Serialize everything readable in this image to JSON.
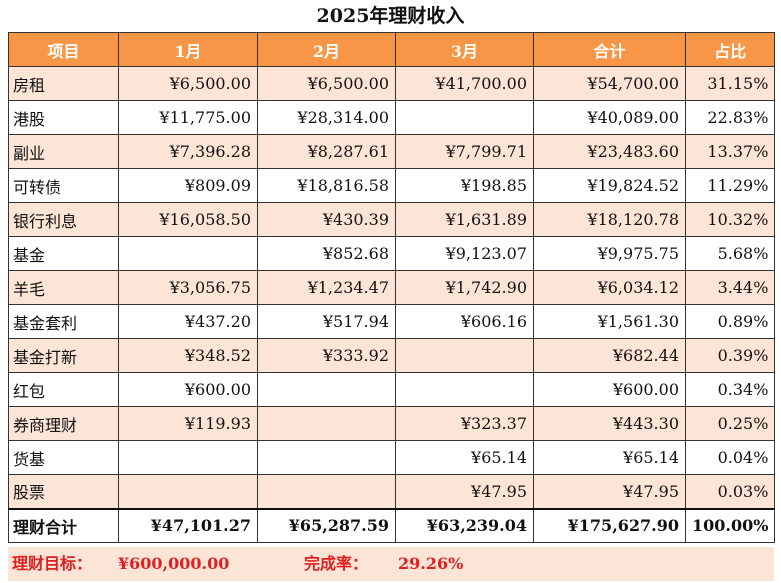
{
  "title": "2025年理财收入",
  "headers": [
    "项目",
    "1月",
    "2月",
    "3月",
    "合计",
    "占比"
  ],
  "rows": [
    [
      "房租",
      "¥6,500.00",
      "¥6,500.00",
      "¥41,700.00",
      "¥54,700.00",
      "31.15%"
    ],
    [
      "港股",
      "¥11,775.00",
      "¥28,314.00",
      "",
      "¥40,089.00",
      "22.83%"
    ],
    [
      "副业",
      "¥7,396.28",
      "¥8,287.61",
      "¥7,799.71",
      "¥23,483.60",
      "13.37%"
    ],
    [
      "可转债",
      "¥809.09",
      "¥18,816.58",
      "¥198.85",
      "¥19,824.52",
      "11.29%"
    ],
    [
      "银行利息",
      "¥16,058.50",
      "¥430.39",
      "¥1,631.89",
      "¥18,120.78",
      "10.32%"
    ],
    [
      "基金",
      "",
      "¥852.68",
      "¥9,123.07",
      "¥9,975.75",
      "5.68%"
    ],
    [
      "羊毛",
      "¥3,056.75",
      "¥1,234.47",
      "¥1,742.90",
      "¥6,034.12",
      "3.44%"
    ],
    [
      "基金套利",
      "¥437.20",
      "¥517.94",
      "¥606.16",
      "¥1,561.30",
      "0.89%"
    ],
    [
      "基金打新",
      "¥348.52",
      "¥333.92",
      "",
      "¥682.44",
      "0.39%"
    ],
    [
      "红包",
      "¥600.00",
      "",
      "",
      "¥600.00",
      "0.34%"
    ],
    [
      "券商理财",
      "¥119.93",
      "",
      "¥323.37",
      "¥443.30",
      "0.25%"
    ],
    [
      "货基",
      "",
      "",
      "¥65.14",
      "¥65.14",
      "0.04%"
    ],
    [
      "股票",
      "",
      "",
      "¥47.95",
      "¥47.95",
      "0.03%"
    ]
  ],
  "total": [
    "理财合计",
    "¥47,101.27",
    "¥65,287.59",
    "¥63,239.04",
    "¥175,627.90",
    "100.00%"
  ],
  "footer": {
    "target_label": "理财目标：",
    "target_value": "¥600,000.00",
    "completion_label": "完成率：",
    "completion_value": "29.26%"
  },
  "colors": {
    "header_bg": "#f79646",
    "stripe_bg": "#fce4d6",
    "footer_text": "#e02020"
  }
}
